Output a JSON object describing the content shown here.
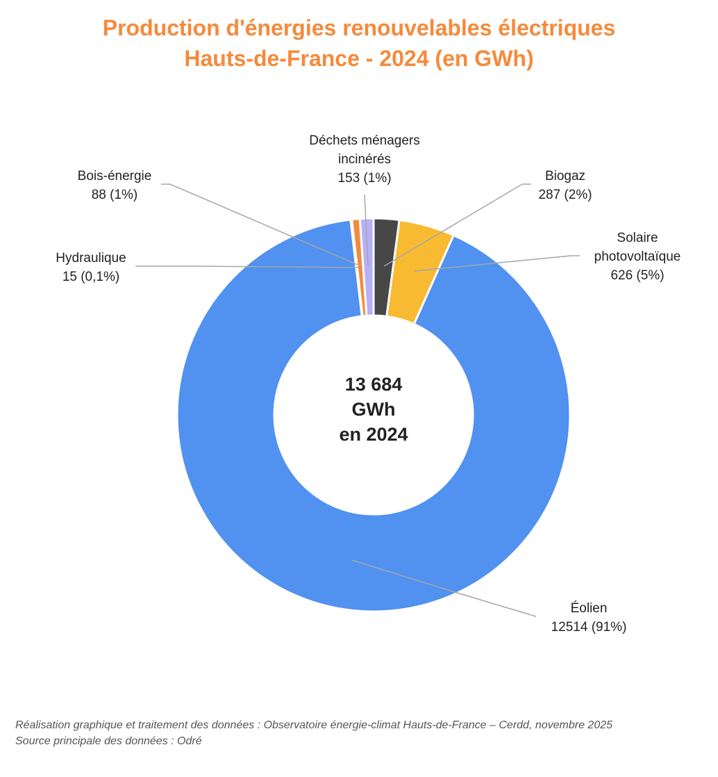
{
  "chart_data": {
    "type": "pie",
    "variant": "donut",
    "title": [
      "Production d'énergies renouvelables électriques",
      "Hauts-de-France - 2024 (en GWh)"
    ],
    "unit": "GWh",
    "center_label": [
      "13 684",
      "GWh",
      "en 2024"
    ],
    "slices": [
      {
        "name": "Biogaz",
        "label": [
          "Biogaz",
          "287 (2%)"
        ],
        "value": 287,
        "percent": 2,
        "color": "#474747"
      },
      {
        "name": "Solaire photovoltaïque",
        "label": [
          "Solaire",
          "photovoltaïque",
          "626 (5%)"
        ],
        "value": 626,
        "percent": 5,
        "color": "#F8BA30"
      },
      {
        "name": "Éolien",
        "label": [
          "Éolien",
          "12514 (91%)"
        ],
        "value": 12514,
        "percent": 91,
        "color": "#5191F0"
      },
      {
        "name": "Hydraulique",
        "label": [
          "Hydraulique",
          "15 (0,1%)"
        ],
        "value": 15,
        "percent": 0.1,
        "color": "#9FC3F7"
      },
      {
        "name": "Bois-énergie",
        "label": [
          "Bois-énergie",
          "88 (1%)"
        ],
        "value": 88,
        "percent": 1,
        "color": "#F58A3B"
      },
      {
        "name": "Déchets ménagers incinérés",
        "label": [
          "Déchets ménagers",
          "incinérés",
          "153 (1%)"
        ],
        "value": 153,
        "percent": 1,
        "color": "#B7B0F5"
      }
    ],
    "start_angle_deg": 0,
    "direction": "clockwise"
  },
  "footer": {
    "line1": "Réalisation graphique et traitement des données : Observatoire énergie-climat Hauts-de-France – Cerdd, novembre 2025",
    "line2": "Source principale des données : Odré"
  }
}
